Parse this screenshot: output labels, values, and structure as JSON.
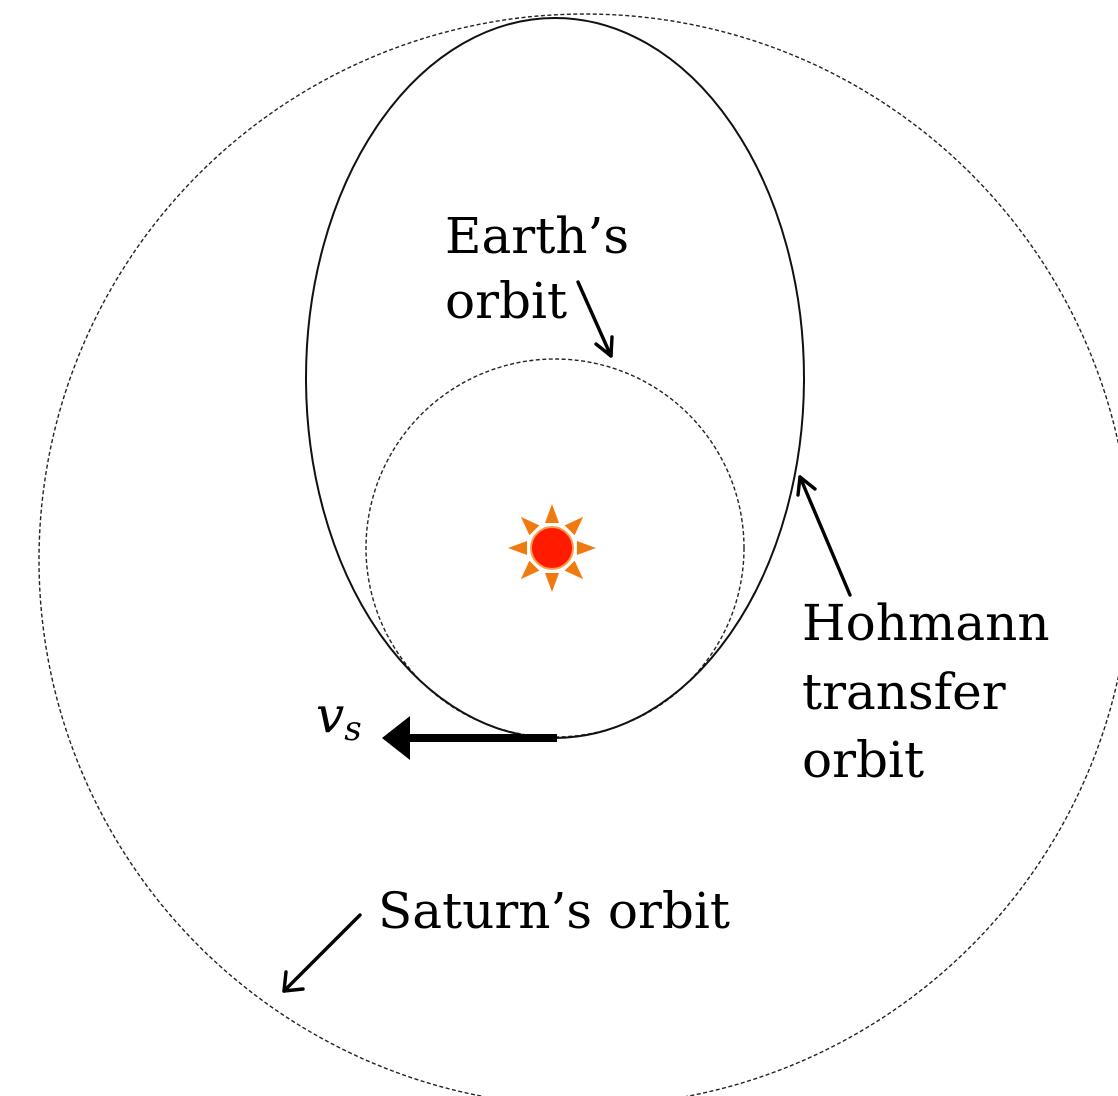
{
  "labels": {
    "earth_line1": "Earth’s",
    "earth_line2": "orbit",
    "hohmann_line1": "Hohmann",
    "hohmann_line2": "transfer",
    "hohmann_line3": "orbit",
    "saturn": "Saturn’s orbit",
    "velocity_symbol": "v",
    "velocity_subscript": "s"
  },
  "colors": {
    "sun_fill": "#ff1a00",
    "sun_rays": "#f07a10",
    "line": "#000000"
  },
  "icons": {
    "sun": "sun-icon"
  }
}
